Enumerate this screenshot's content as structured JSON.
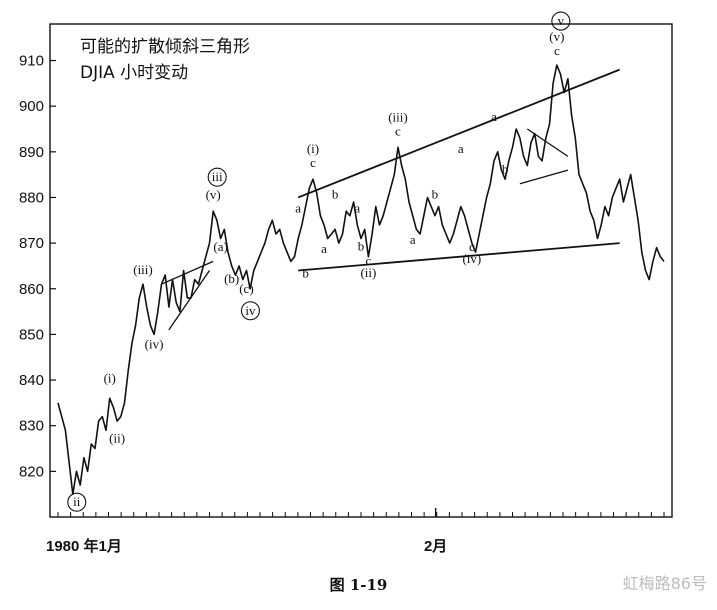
{
  "chart_data": {
    "type": "line",
    "title": "可能的扩散倾斜三角形",
    "subtitle": "DJIA 小时变动",
    "xlabel": "",
    "ylabel": "",
    "ylim": [
      810,
      918
    ],
    "y_ticks": [
      820,
      830,
      840,
      850,
      860,
      870,
      880,
      890,
      900,
      910
    ],
    "x_tick_labels": [
      "1980 年1月",
      "2月"
    ],
    "grid": false,
    "series": [
      {
        "values": [
          835,
          832,
          829,
          822,
          815,
          820,
          817,
          823,
          820,
          826,
          825,
          831,
          832,
          829,
          836,
          834,
          831,
          832,
          835,
          842,
          848,
          852,
          858,
          861,
          856,
          852,
          850,
          855,
          861,
          863,
          856,
          862,
          857,
          855,
          864,
          858,
          858,
          862,
          861,
          864,
          867,
          870,
          877,
          875,
          871,
          873,
          868,
          865,
          863,
          865,
          862,
          864,
          860,
          864,
          866,
          868,
          870,
          873,
          875,
          872,
          873,
          870,
          868,
          866,
          867,
          871,
          874,
          878,
          882,
          884,
          881,
          876,
          874,
          871,
          872,
          873,
          870,
          872,
          877,
          876,
          879,
          874,
          871,
          873,
          867,
          872,
          878,
          874,
          876,
          879,
          882,
          885,
          891,
          887,
          884,
          879,
          876,
          873,
          872,
          876,
          880,
          878,
          876,
          878,
          874,
          872,
          870,
          872,
          875,
          878,
          876,
          873,
          870,
          868,
          872,
          876,
          880,
          883,
          888,
          890,
          886,
          884,
          888,
          891,
          895,
          893,
          889,
          887,
          892,
          894,
          889,
          888,
          893,
          896,
          905,
          909,
          907,
          903,
          906,
          898,
          893,
          885,
          883,
          881,
          877,
          875,
          871,
          874,
          878,
          876,
          880,
          882,
          884,
          879,
          882,
          885,
          880,
          875,
          868,
          864,
          862,
          866,
          869,
          867,
          866
        ]
      }
    ],
    "annotations": [
      {
        "text": "ii",
        "circled": true,
        "value": 815
      },
      {
        "text": "(i)",
        "value": 836
      },
      {
        "text": "(ii)",
        "value": 829
      },
      {
        "text": "(iii)",
        "value": 861
      },
      {
        "text": "(iv)",
        "value": 850
      },
      {
        "text": "iii",
        "circled": true,
        "value": 877
      },
      {
        "text": "(v)",
        "value": 877
      },
      {
        "text": "(a)",
        "value": 870
      },
      {
        "text": "(b)",
        "value": 863
      },
      {
        "text": "(c)",
        "value": 860
      },
      {
        "text": "iv",
        "circled": true,
        "value": 860
      },
      {
        "text": "a",
        "value": 875
      },
      {
        "text": "b",
        "value": 866
      },
      {
        "text": "(i)",
        "value": 884
      },
      {
        "text": "c",
        "value": 884
      },
      {
        "text": "a",
        "value": 870
      },
      {
        "text": "b",
        "value": 878
      },
      {
        "text": "a",
        "value": 875
      },
      {
        "text": "b",
        "value": 871
      },
      {
        "text": "c",
        "value": 867
      },
      {
        "text": "(ii)",
        "value": 867
      },
      {
        "text": "(iii)",
        "value": 891
      },
      {
        "text": "c",
        "value": 891
      },
      {
        "text": "a",
        "value": 872
      },
      {
        "text": "b",
        "value": 878
      },
      {
        "text": "a",
        "value": 888
      },
      {
        "text": "c",
        "value": 870
      },
      {
        "text": "(iv)",
        "value": 870
      },
      {
        "text": "a",
        "value": 895
      },
      {
        "text": "b",
        "value": 887
      },
      {
        "text": "c",
        "value": 909
      },
      {
        "text": "(v)",
        "value": 909
      },
      {
        "text": "v",
        "circled": true,
        "value": 909
      }
    ],
    "trendlines": [
      {
        "name": "diagonal-upper",
        "from": [
          0,
          880
        ],
        "to": [
          1,
          908
        ]
      },
      {
        "name": "diagonal-lower",
        "from": [
          0,
          864
        ],
        "to": [
          1,
          870
        ]
      }
    ]
  },
  "figure_caption": "图  1-19",
  "watermark_text": "虹梅路86号",
  "colors": {
    "line": "#111111",
    "background": "#ffffff"
  }
}
